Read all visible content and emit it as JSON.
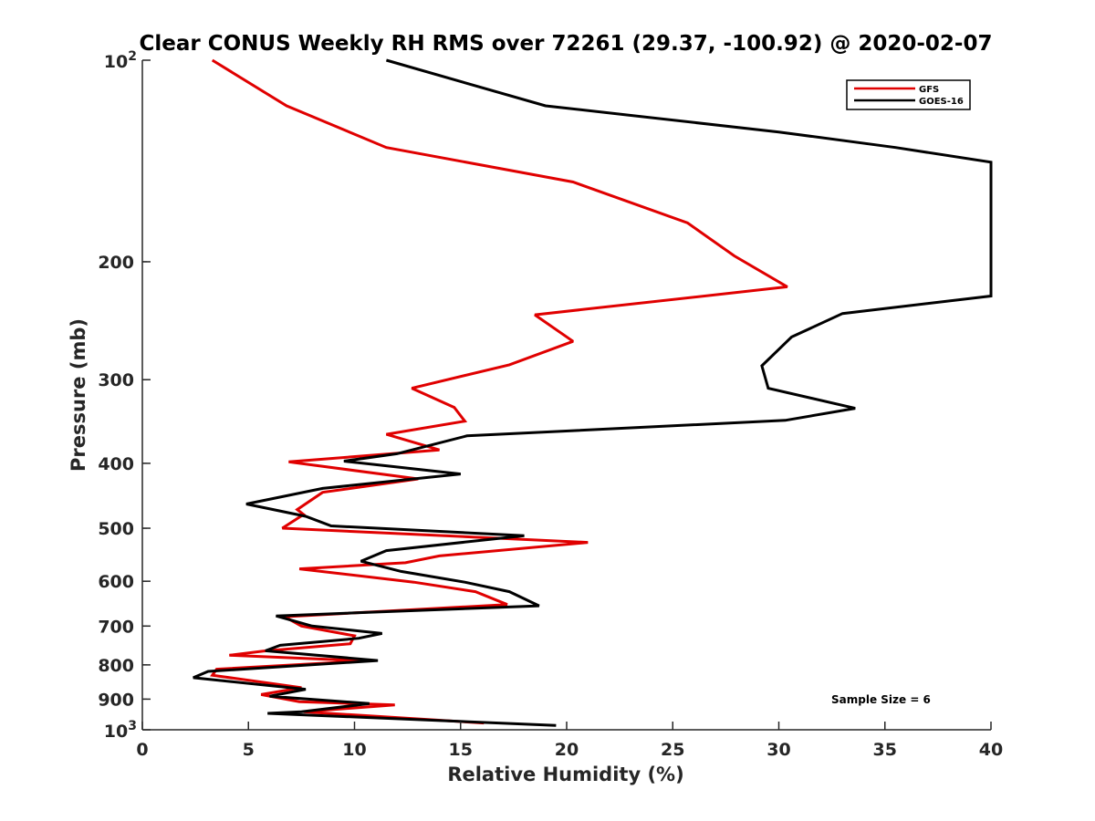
{
  "chart_data": {
    "type": "line",
    "title": "Clear CONUS Weekly RH RMS over 72261 (29.37, -100.92) @ 2020-02-07",
    "xlabel": "Relative Humidity (%)",
    "ylabel": "Pressure (mb)",
    "xlim": [
      0,
      40
    ],
    "ylim": [
      100,
      1000
    ],
    "y_scale": "log",
    "y_reversed": true,
    "x_ticks": [
      0,
      5,
      10,
      15,
      20,
      25,
      30,
      35,
      40
    ],
    "x_tick_labels": [
      "0",
      "5",
      "10",
      "15",
      "20",
      "25",
      "30",
      "35",
      "40"
    ],
    "y_ticks": [
      200,
      300,
      400,
      500,
      600,
      700,
      800,
      900
    ],
    "y_tick_labels": [
      "200",
      "300",
      "400",
      "500",
      "600",
      "700",
      "800",
      "900"
    ],
    "y_pow_ticks": [
      {
        "value": 100,
        "base": "10",
        "exp": "2"
      },
      {
        "value": 1000,
        "base": "10",
        "exp": "3"
      }
    ],
    "grid": false,
    "legend_position": "top-right",
    "annotation": "Sample Size = 6",
    "series": [
      {
        "name": "GFS",
        "color": "#e00000",
        "points": [
          [
            3.3,
            100
          ],
          [
            6.8,
            117
          ],
          [
            11.5,
            135
          ],
          [
            20.3,
            152
          ],
          [
            25.7,
            175
          ],
          [
            27.9,
            196
          ],
          [
            30.4,
            218
          ],
          [
            18.5,
            240
          ],
          [
            20.3,
            263
          ],
          [
            17.3,
            285
          ],
          [
            12.7,
            309
          ],
          [
            14.7,
            330
          ],
          [
            15.2,
            346
          ],
          [
            11.5,
            362
          ],
          [
            14.0,
            382
          ],
          [
            6.9,
            398
          ],
          [
            13.0,
            422
          ],
          [
            8.5,
            442
          ],
          [
            7.3,
            469
          ],
          [
            7.6,
            477
          ],
          [
            6.6,
            500
          ],
          [
            21.0,
            525
          ],
          [
            14.0,
            550
          ],
          [
            12.4,
            563
          ],
          [
            7.4,
            575
          ],
          [
            12.8,
            602
          ],
          [
            15.7,
            622
          ],
          [
            17.2,
            650
          ],
          [
            6.7,
            678
          ],
          [
            7.5,
            700
          ],
          [
            10.0,
            724
          ],
          [
            9.8,
            744
          ],
          [
            5.7,
            763
          ],
          [
            4.1,
            774
          ],
          [
            10.5,
            789
          ],
          [
            3.5,
            812
          ],
          [
            3.3,
            829
          ],
          [
            7.5,
            865
          ],
          [
            5.6,
            886
          ],
          [
            7.4,
            908
          ],
          [
            11.9,
            918
          ],
          [
            7.6,
            940
          ],
          [
            16.1,
            977
          ]
        ]
      },
      {
        "name": "GOES-16",
        "color": "#000000",
        "points": [
          [
            11.5,
            100
          ],
          [
            19.0,
            117
          ],
          [
            30.0,
            128
          ],
          [
            35.5,
            135
          ],
          [
            40.0,
            142
          ],
          [
            40.0,
            225
          ],
          [
            33.0,
            239
          ],
          [
            30.6,
            259
          ],
          [
            29.2,
            286
          ],
          [
            29.5,
            309
          ],
          [
            33.6,
            331
          ],
          [
            30.3,
            345
          ],
          [
            15.3,
            364
          ],
          [
            12.0,
            387
          ],
          [
            9.5,
            397
          ],
          [
            15.0,
            415
          ],
          [
            8.5,
            436
          ],
          [
            4.9,
            460
          ],
          [
            7.7,
            480
          ],
          [
            8.9,
            496
          ],
          [
            18.0,
            513
          ],
          [
            11.5,
            540
          ],
          [
            10.3,
            560
          ],
          [
            12.2,
            580
          ],
          [
            15.2,
            602
          ],
          [
            17.3,
            622
          ],
          [
            18.7,
            653
          ],
          [
            6.3,
            676
          ],
          [
            8.0,
            700
          ],
          [
            11.3,
            718
          ],
          [
            10.2,
            730
          ],
          [
            6.5,
            748
          ],
          [
            5.8,
            762
          ],
          [
            11.1,
            788
          ],
          [
            3.1,
            818
          ],
          [
            2.4,
            836
          ],
          [
            7.7,
            870
          ],
          [
            6.0,
            891
          ],
          [
            10.7,
            914
          ],
          [
            7.5,
            940
          ],
          [
            5.9,
            945
          ],
          [
            19.5,
            985
          ]
        ]
      }
    ]
  }
}
